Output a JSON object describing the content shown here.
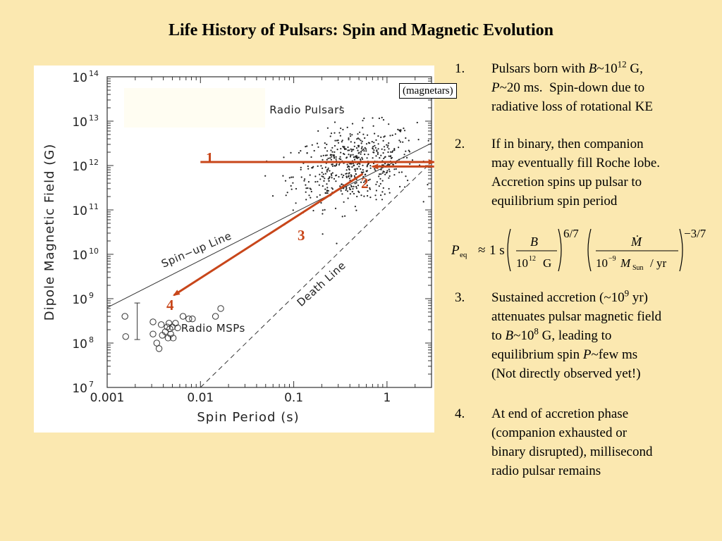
{
  "slide": {
    "title": "Life History of Pulsars: Spin and Magnetic Evolution"
  },
  "annotations": {
    "magnetars_label": "(magnetars)",
    "arrow_labels": [
      "1",
      "2",
      "3",
      "4"
    ]
  },
  "items": [
    {
      "num": "1.",
      "lines": [
        [
          {
            "t": "Pulsars born with "
          },
          {
            "t": "B",
            "i": true
          },
          {
            "t": "~10"
          },
          {
            "t": "12",
            "sup": true
          },
          {
            "t": " G,"
          }
        ],
        [
          {
            "t": "P",
            "i": true
          },
          {
            "t": "~20 ms.  Spin-down due to"
          }
        ],
        [
          {
            "t": "radiative loss of rotational KE"
          }
        ]
      ]
    },
    {
      "num": "2.",
      "lines": [
        [
          {
            "t": "If in binary, then companion"
          }
        ],
        [
          {
            "t": "may eventually fill Roche lobe."
          }
        ],
        [
          {
            "t": "Accretion spins up pulsar to"
          }
        ],
        [
          {
            "t": "equilibrium spin period"
          }
        ]
      ]
    },
    {
      "num": "3.",
      "lines": [
        [
          {
            "t": "Sustained accretion (~10"
          },
          {
            "t": "9",
            "sup": true
          },
          {
            "t": " yr)"
          }
        ],
        [
          {
            "t": "attenuates pulsar magnetic field"
          }
        ],
        [
          {
            "t": "to "
          },
          {
            "t": "B",
            "i": true
          },
          {
            "t": "~10"
          },
          {
            "t": "8",
            "sup": true
          },
          {
            "t": " G, leading to"
          }
        ],
        [
          {
            "t": "equilibrium spin "
          },
          {
            "t": "P",
            "i": true
          },
          {
            "t": "~few ms"
          }
        ],
        [
          {
            "t": "(Not directly observed yet!)"
          }
        ]
      ]
    },
    {
      "num": "4.",
      "lines": [
        [
          {
            "t": "At end of accretion phase"
          }
        ],
        [
          {
            "t": "(companion exhausted or"
          }
        ],
        [
          {
            "t": "binary disrupted), millisecond"
          }
        ],
        [
          {
            "t": "radio pulsar remains"
          }
        ]
      ]
    }
  ],
  "formula": {
    "lhs_symbol": "P",
    "lhs_subscript": "eq",
    "approx": "≈",
    "coefficient": "1 s",
    "frac1_num": "B",
    "frac1_den_base": "10",
    "frac1_den_exp": "12",
    "frac1_den_unit": "G",
    "exp1": "6/7",
    "frac2_num": "Ṁ",
    "frac2_den_base": "10",
    "frac2_den_exp": "−9",
    "frac2_den_sym": "M",
    "frac2_den_sub": "Sun",
    "frac2_den_unit": "/ yr",
    "exp2": "−3/7"
  },
  "chart_data": {
    "type": "scatter",
    "xlabel": "Spin Period (s)",
    "ylabel": "Dipole Magnetic Field (G)",
    "xscale": "log",
    "yscale": "log",
    "xlim": [
      0.001,
      3
    ],
    "ylim": [
      10000000.0,
      100000000000000.0
    ],
    "x_ticks": [
      {
        "value": 0.001,
        "label": "0.001"
      },
      {
        "value": 0.01,
        "label": "0.01"
      },
      {
        "value": 0.1,
        "label": "0.1"
      },
      {
        "value": 1,
        "label": "1"
      }
    ],
    "y_ticks": [
      {
        "value": 10000000.0,
        "base": "10",
        "exp": "7"
      },
      {
        "value": 100000000.0,
        "base": "10",
        "exp": "8"
      },
      {
        "value": 1000000000.0,
        "base": "10",
        "exp": "9"
      },
      {
        "value": 10000000000.0,
        "base": "10",
        "exp": "10"
      },
      {
        "value": 100000000000.0,
        "base": "10",
        "exp": "11"
      },
      {
        "value": 1000000000000.0,
        "base": "10",
        "exp": "12"
      },
      {
        "value": 10000000000000.0,
        "base": "10",
        "exp": "13"
      },
      {
        "value": 100000000000000.0,
        "base": "10",
        "exp": "14"
      }
    ],
    "grid": false,
    "lines": [
      {
        "label": "Spin−up Line",
        "style": "solid",
        "points": [
          [
            0.001,
            630000000.0
          ],
          [
            3,
            3200000000000.0
          ]
        ]
      },
      {
        "label": "Death Line",
        "style": "dashed",
        "points": [
          [
            0.01,
            10000000.0
          ],
          [
            3,
            1200000000000.0
          ]
        ]
      }
    ],
    "region_labels": [
      {
        "text": "Radio Pulsars",
        "x": 0.055,
        "y": 15000000000000.0
      },
      {
        "text": "Radio MSPs",
        "x": 0.0062,
        "y": 180000000.0
      },
      {
        "text": "Spin−up Line",
        "x": 0.004,
        "y": 5000000000.0,
        "angle_deg": -23
      },
      {
        "text": "Death Line",
        "x": 0.12,
        "y": 650000000.0,
        "angle_deg": -42
      }
    ],
    "series": [
      {
        "marker": "dot",
        "points_source": "radio_pulsars",
        "center_log_x": -0.35,
        "center_log_y": 12.0,
        "count": 560
      },
      {
        "name": "Radio MSPs",
        "marker": "open-circle",
        "points": [
          [
            0.00155,
            400000000.0
          ],
          [
            0.00158,
            140000000.0
          ],
          [
            0.0031,
            300000000.0
          ],
          [
            0.0031,
            160000000.0
          ],
          [
            0.0034,
            100000000.0
          ],
          [
            0.0036,
            75000000.0
          ],
          [
            0.0038,
            260000000.0
          ],
          [
            0.0039,
            150000000.0
          ],
          [
            0.0042,
            180000000.0
          ],
          [
            0.0044,
            230000000.0
          ],
          [
            0.0045,
            130000000.0
          ],
          [
            0.0046,
            280000000.0
          ],
          [
            0.0047,
            210000000.0
          ],
          [
            0.0048,
            160000000.0
          ],
          [
            0.005,
            230000000.0
          ],
          [
            0.0051,
            130000000.0
          ],
          [
            0.0054,
            280000000.0
          ],
          [
            0.0057,
            220000000.0
          ],
          [
            0.0065,
            400000000.0
          ],
          [
            0.0075,
            350000000.0
          ],
          [
            0.0082,
            350000000.0
          ],
          [
            0.0145,
            400000000.0
          ],
          [
            0.0165,
            600000000.0
          ]
        ]
      }
    ],
    "error_bars": [
      {
        "x": 0.0021,
        "y_low": 120000000.0,
        "y_high": 800000000.0
      }
    ],
    "arrows": [
      {
        "label": "1",
        "from": [
          0.01,
          1200000000000.0
        ],
        "to": [
          3.2,
          1200000000000.0
        ]
      },
      {
        "label": "2",
        "from": [
          3.2,
          950000000000.0
        ],
        "to": [
          0.7,
          950000000000.0
        ]
      },
      {
        "label": "3",
        "from": [
          0.55,
          650000000000.0
        ],
        "to": [
          0.0052,
          1200000000.0
        ]
      }
    ]
  }
}
